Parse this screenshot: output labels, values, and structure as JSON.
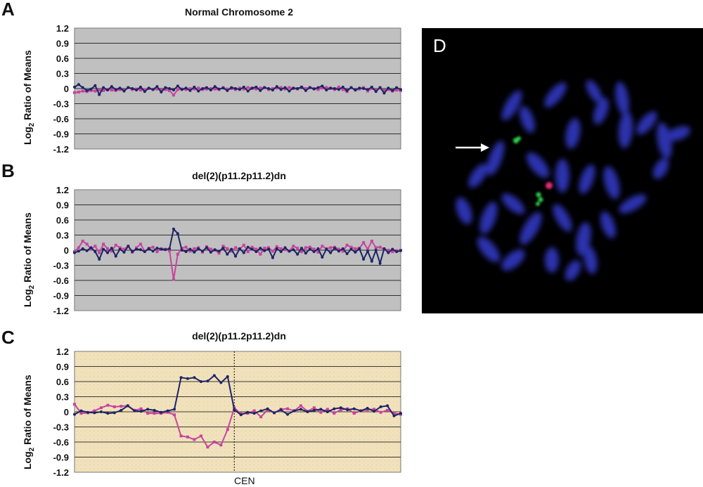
{
  "colors": {
    "gray_bg": "#c0c0c0",
    "tan_bg": "#f1e2bd",
    "series_blue": "#1c2466",
    "series_magenta": "#c7449e",
    "fish_bg": "#000000",
    "chromosome": "#2e36b6",
    "green_signal": "#2fd148",
    "red_signal": "#e02a72",
    "arrow": "#ffffff"
  },
  "panels": {
    "A": {
      "letter": "A"
    },
    "B": {
      "letter": "B"
    },
    "C": {
      "letter": "C"
    },
    "D": {
      "letter": "D",
      "arrow_icon": "arrow-right-icon"
    }
  },
  "chart_data": [
    {
      "type": "line",
      "title": "Normal Chromosome 2",
      "ylabel_main": "Log",
      "ylabel_sub": "2",
      "ylabel_rest": " Ratio of Means",
      "ylim": [
        -1.2,
        1.2
      ],
      "yticks": [
        "1.2",
        "0.9",
        "0.6",
        "0.3",
        "0",
        "-0.3",
        "-0.6",
        "-0.9",
        "-1.2"
      ],
      "grid": true,
      "background": "gray",
      "series": [
        {
          "values": [
            0.03,
            0.08,
            0.02,
            -0.04,
            -0.01,
            0.06,
            -0.12,
            0.02,
            -0.03,
            0.04,
            -0.02,
            0.01,
            -0.05,
            0.02,
            0.0,
            -0.03,
            0.03,
            -0.06,
            0.01,
            -0.02,
            0.04,
            -0.07,
            0.02,
            0.0,
            -0.03,
            0.05,
            -0.02,
            0.01,
            -0.04,
            0.03,
            -0.05,
            0.0,
            0.02,
            -0.03,
            0.04,
            -0.01,
            0.01,
            -0.04,
            0.02,
            0.0,
            -0.02,
            0.03,
            -0.05,
            0.01,
            0.03,
            -0.04,
            0.02,
            0.0,
            -0.03,
            0.04,
            -0.02,
            0.02,
            -0.05,
            0.01,
            0.0,
            0.03,
            -0.04,
            0.02,
            -0.01,
            0.02,
            0.05,
            -0.03,
            0.01,
            0.0,
            -0.02,
            0.03,
            -0.04,
            0.02,
            -0.03,
            0.01,
            0.0,
            -0.02,
            0.03,
            -0.06,
            0.02,
            -0.09,
            0.01,
            -0.04,
            0.02,
            -0.02
          ]
        },
        {
          "values": [
            -0.08,
            -0.07,
            -0.05,
            -0.06,
            -0.04,
            -0.05,
            -0.03,
            -0.04,
            -0.02,
            -0.03,
            -0.04,
            -0.02,
            -0.03,
            0.02,
            -0.02,
            -0.01,
            -0.03,
            -0.02,
            0.0,
            -0.02,
            -0.01,
            -0.03,
            -0.02,
            -0.04,
            -0.13,
            -0.02,
            -0.01,
            -0.02,
            0.0,
            -0.01,
            0.01,
            -0.02,
            -0.01,
            0.0,
            -0.01,
            -0.02,
            0.02,
            -0.01,
            0.0,
            -0.02,
            0.01,
            -0.01,
            0.02,
            0.0,
            -0.01,
            0.01,
            0.02,
            -0.02,
            0.0,
            0.01,
            0.02,
            -0.01,
            0.02,
            0.0,
            -0.01,
            0.03,
            0.0,
            0.02,
            0.0,
            -0.02,
            0.01,
            0.02,
            0.0,
            -0.02,
            0.03,
            -0.02,
            -0.06,
            0.02,
            -0.03,
            -0.01,
            0.02,
            -0.05,
            0.0,
            -0.03,
            0.02,
            -0.04,
            -0.02,
            -0.05,
            -0.03,
            -0.04
          ]
        }
      ]
    },
    {
      "type": "line",
      "title": "del(2)(p11.2p11.2)dn",
      "ylabel_main": "Log",
      "ylabel_sub": "2",
      "ylabel_rest": " Ratio of Means",
      "ylim": [
        -1.2,
        1.2
      ],
      "yticks": [
        "1.2",
        "0.9",
        "0.6",
        "0.3",
        "0",
        "-0.3",
        "-0.6",
        "-0.9",
        "-1.2"
      ],
      "grid": true,
      "background": "gray",
      "series": [
        {
          "values": [
            -0.05,
            -0.02,
            0.03,
            -0.01,
            0.05,
            -0.03,
            -0.18,
            0.02,
            -0.05,
            0.04,
            -0.12,
            0.02,
            -0.04,
            0.08,
            -0.03,
            0.02,
            0.01,
            -0.03,
            0.03,
            -0.02,
            0.04,
            0.02,
            0.01,
            0.03,
            0.42,
            0.33,
            0.0,
            -0.03,
            0.02,
            -0.04,
            0.03,
            -0.02,
            0.05,
            -0.04,
            0.01,
            -0.02,
            0.04,
            -0.08,
            0.02,
            -0.12,
            0.03,
            -0.05,
            0.06,
            0.02,
            -0.03,
            0.04,
            -0.01,
            0.02,
            -0.15,
            0.03,
            -0.03,
            0.05,
            -0.02,
            0.01,
            -0.08,
            0.04,
            -0.06,
            0.02,
            -0.03,
            0.03,
            -0.14,
            0.02,
            -0.05,
            0.04,
            -0.02,
            0.03,
            -0.07,
            0.02,
            -0.04,
            0.03,
            -0.18,
            -0.02,
            -0.22,
            0.0,
            -0.26,
            0.03,
            -0.05,
            0.02,
            -0.03,
            -0.01
          ]
        },
        {
          "values": [
            -0.03,
            0.05,
            0.18,
            0.12,
            0.02,
            0.08,
            -0.05,
            0.12,
            0.03,
            -0.02,
            0.1,
            0.05,
            0.02,
            0.08,
            -0.04,
            0.05,
            0.12,
            -0.02,
            0.04,
            0.06,
            -0.03,
            0.03,
            0.02,
            -0.01,
            -0.58,
            -0.08,
            0.04,
            0.06,
            -0.02,
            0.03,
            0.05,
            -0.04,
            0.07,
            0.02,
            0.0,
            -0.06,
            0.08,
            0.03,
            -0.02,
            0.05,
            0.02,
            0.1,
            -0.03,
            0.06,
            0.02,
            -0.08,
            0.04,
            0.05,
            -0.02,
            0.07,
            0.03,
            0.01,
            -0.02,
            0.08,
            0.04,
            -0.03,
            0.05,
            0.06,
            0.02,
            -0.04,
            0.08,
            0.03,
            0.05,
            0.06,
            0.02,
            -0.02,
            0.1,
            0.06,
            0.03,
            0.04,
            0.15,
            0.02,
            0.18,
            0.05,
            0.06,
            0.02,
            0.0,
            -0.03,
            -0.01,
            0.0
          ]
        }
      ]
    },
    {
      "type": "line",
      "title": "del(2)(p11.2p11.2)dn",
      "ylabel_main": "Log",
      "ylabel_sub": "2",
      "ylabel_rest": " Ratio of Means",
      "ylim": [
        -1.2,
        1.2
      ],
      "yticks": [
        "1.2",
        "0.9",
        "0.6",
        "0.3",
        "0",
        "-0.3",
        "-0.6",
        "-0.9",
        "-1.2"
      ],
      "grid": true,
      "background": "tan",
      "xlabel": "CEN",
      "cen_index": 24,
      "series": [
        {
          "values": [
            -0.05,
            0.02,
            -0.01,
            -0.02,
            0.0,
            -0.03,
            -0.02,
            0.03,
            0.12,
            0.02,
            0.01,
            0.05,
            0.03,
            -0.01,
            0.02,
            0.05,
            0.68,
            0.66,
            0.68,
            0.6,
            0.61,
            0.72,
            0.58,
            0.7,
            0.04,
            -0.06,
            -0.01,
            -0.03,
            0.02,
            0.06,
            -0.02,
            0.04,
            -0.05,
            0.02,
            0.05,
            0.0,
            0.03,
            0.05,
            0.0,
            0.06,
            0.08,
            0.04,
            0.06,
            0.02,
            0.07,
            0.01,
            0.1,
            0.12,
            -0.08,
            -0.03
          ]
        },
        {
          "values": [
            0.15,
            -0.03,
            -0.02,
            0.02,
            0.08,
            0.13,
            0.1,
            0.11,
            0.12,
            0.03,
            0.06,
            -0.03,
            -0.03,
            -0.03,
            -0.01,
            -0.06,
            -0.48,
            -0.5,
            -0.55,
            -0.48,
            -0.7,
            -0.6,
            -0.66,
            -0.35,
            0.08,
            -0.04,
            -0.03,
            0.02,
            -0.1,
            0.04,
            -0.02,
            0.05,
            0.06,
            0.02,
            0.12,
            0.01,
            0.08,
            -0.01,
            0.05,
            -0.03,
            0.04,
            0.06,
            -0.03,
            0.02,
            0.04,
            0.05,
            -0.01,
            0.03,
            -0.03,
            -0.05
          ]
        }
      ]
    }
  ]
}
